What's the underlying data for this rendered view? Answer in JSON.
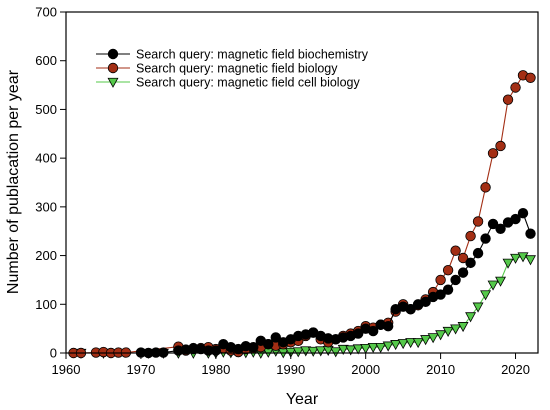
{
  "chart_data": {
    "type": "line",
    "xlabel": "Year",
    "ylabel": "Number of publacation per year",
    "xlim": [
      1960,
      2023
    ],
    "ylim": [
      0,
      700
    ],
    "xticks": [
      1960,
      1970,
      1980,
      1990,
      2000,
      2010,
      2020
    ],
    "yticks": [
      0,
      100,
      200,
      300,
      400,
      500,
      600,
      700
    ],
    "grid": false,
    "legend_position": "top-left",
    "series": [
      {
        "name": "Search query: magnetic field biochemistry",
        "color": "#000000",
        "marker": "circle",
        "x": [
          1970,
          1971,
          1972,
          1973,
          1975,
          1976,
          1977,
          1978,
          1979,
          1980,
          1981,
          1982,
          1983,
          1984,
          1985,
          1986,
          1987,
          1988,
          1989,
          1990,
          1991,
          1992,
          1993,
          1994,
          1995,
          1996,
          1997,
          1998,
          1999,
          2000,
          2001,
          2002,
          2003,
          2004,
          2005,
          2006,
          2007,
          2008,
          2009,
          2010,
          2011,
          2012,
          2013,
          2014,
          2015,
          2016,
          2017,
          2018,
          2019,
          2020,
          2021,
          2022
        ],
        "y": [
          1,
          0,
          1,
          1,
          5,
          7,
          10,
          8,
          5,
          5,
          18,
          12,
          8,
          14,
          12,
          25,
          18,
          32,
          22,
          28,
          35,
          38,
          42,
          35,
          30,
          28,
          32,
          35,
          40,
          50,
          45,
          58,
          55,
          90,
          95,
          90,
          100,
          105,
          115,
          120,
          130,
          150,
          165,
          185,
          205,
          235,
          265,
          255,
          268,
          275,
          287,
          245
        ]
      },
      {
        "name": "Search query: magnetic field biology",
        "color": "#a32e14",
        "marker": "circle",
        "x": [
          1961,
          1962,
          1964,
          1965,
          1966,
          1967,
          1968,
          1975,
          1976,
          1977,
          1978,
          1979,
          1980,
          1981,
          1982,
          1983,
          1984,
          1985,
          1986,
          1987,
          1988,
          1989,
          1990,
          1991,
          1992,
          1993,
          1994,
          1995,
          1996,
          1997,
          1998,
          1999,
          2000,
          2001,
          2002,
          2003,
          2004,
          2005,
          2006,
          2007,
          2008,
          2009,
          2010,
          2011,
          2012,
          2013,
          2014,
          2015,
          2016,
          2017,
          2018,
          2019,
          2020,
          2021,
          2022
        ],
        "y": [
          0,
          0,
          1,
          2,
          0,
          1,
          1,
          13,
          5,
          8,
          10,
          12,
          8,
          10,
          5,
          2,
          8,
          10,
          12,
          18,
          15,
          18,
          22,
          25,
          35,
          42,
          28,
          22,
          28,
          35,
          40,
          45,
          55,
          52,
          58,
          62,
          85,
          100,
          90,
          98,
          110,
          125,
          150,
          170,
          210,
          195,
          240,
          270,
          340,
          410,
          425,
          520,
          545,
          570,
          565
        ]
      },
      {
        "name": "Search query: magnetic field cell biology",
        "color": "#55c94a",
        "marker": "triangle-down",
        "x": [
          1962,
          1965,
          1971,
          1973,
          1975,
          1977,
          1979,
          1980,
          1981,
          1982,
          1983,
          1984,
          1985,
          1986,
          1987,
          1988,
          1989,
          1990,
          1991,
          1992,
          1993,
          1994,
          1995,
          1996,
          1997,
          1998,
          1999,
          2000,
          2001,
          2002,
          2003,
          2004,
          2005,
          2006,
          2007,
          2008,
          2009,
          2010,
          2011,
          2012,
          2013,
          2014,
          2015,
          2016,
          2017,
          2018,
          2019,
          2020,
          2021,
          2022
        ],
        "y": [
          0,
          0,
          0,
          0,
          0,
          0,
          0,
          0,
          2,
          1,
          3,
          1,
          2,
          0,
          2,
          4,
          1,
          2,
          3,
          5,
          4,
          5,
          6,
          3,
          8,
          7,
          9,
          10,
          12,
          12,
          15,
          18,
          20,
          22,
          22,
          28,
          32,
          38,
          45,
          50,
          55,
          75,
          95,
          120,
          140,
          148,
          185,
          195,
          198,
          192
        ]
      }
    ]
  }
}
